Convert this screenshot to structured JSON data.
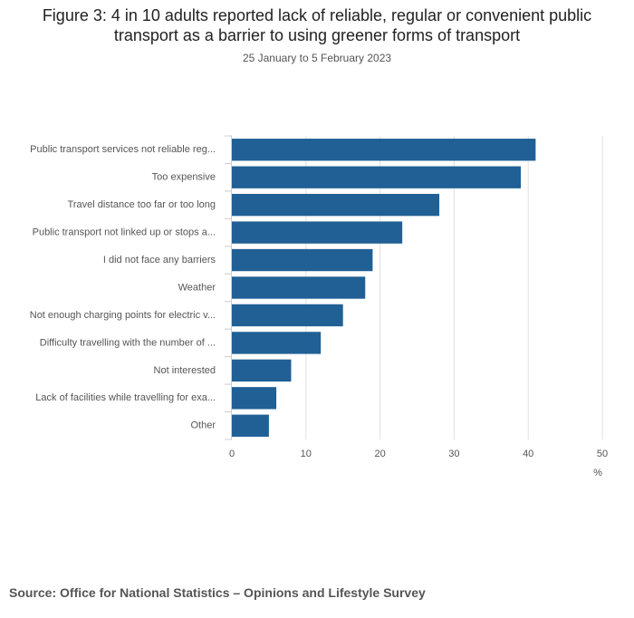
{
  "chart_data": {
    "type": "bar",
    "orientation": "horizontal",
    "title": "Figure 3: 4 in 10 adults reported lack of reliable, regular or convenient public transport as a barrier to using greener forms of transport",
    "subtitle": "25 January to 5 February 2023",
    "categories": [
      "Public transport services not reliable reg...",
      "Too expensive",
      "Travel distance too far or too long",
      "Public transport not linked up or stops a...",
      "I did not face any barriers",
      "Weather",
      "Not enough charging points for electric v...",
      "Difficulty travelling with the number of ...",
      "Not interested",
      "Lack of facilities while travelling for exa...",
      "Other"
    ],
    "values": [
      41,
      39,
      28,
      23,
      19,
      18,
      15,
      12,
      8,
      6,
      5
    ],
    "color": "#206095",
    "xlabel": "%",
    "xlim": [
      0,
      50
    ],
    "xticks": [
      0,
      10,
      20,
      30,
      40,
      50
    ],
    "grid": true,
    "source": "Source: Office for National Statistics – Opinions and Lifestyle Survey"
  }
}
